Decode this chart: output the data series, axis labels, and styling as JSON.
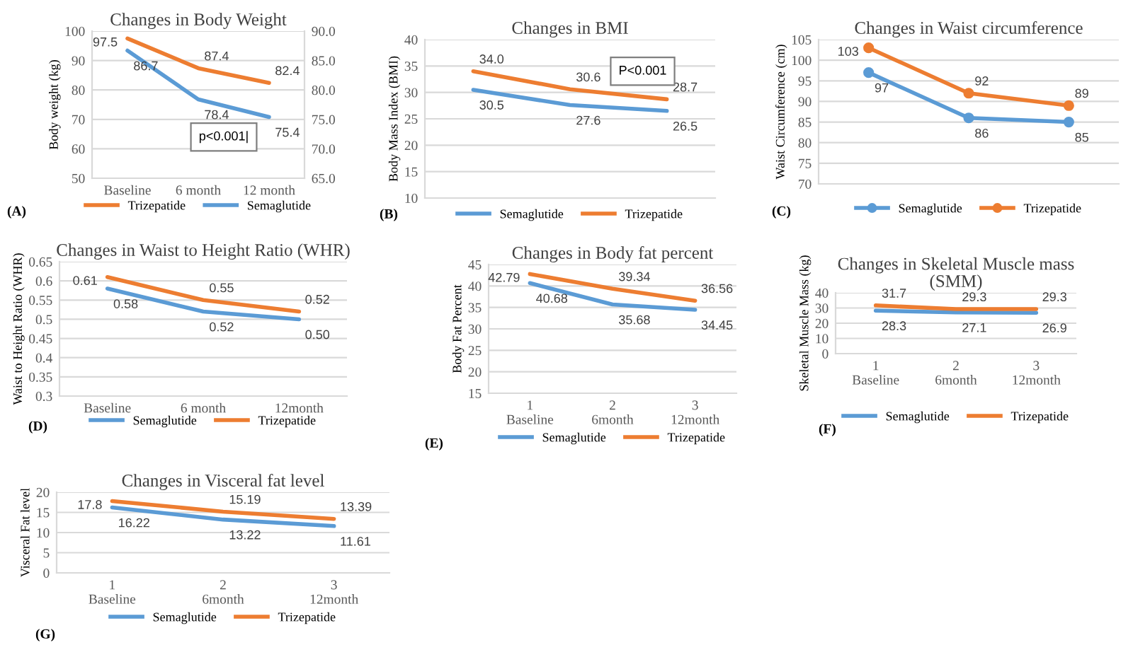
{
  "chart_data": [
    {
      "type": "line",
      "title": "Changes in Body Weight",
      "ylabel": "Body weight (kg)",
      "categories": [
        "Baseline",
        "6 month",
        "12 month"
      ],
      "series": [
        {
          "name": "Trizepatide",
          "color": "#ed7d31",
          "values": [
            97.5,
            87.4,
            82.4
          ],
          "value_labels": [
            "97.5",
            "87.4",
            "82.4"
          ]
        },
        {
          "name": "Semaglutide",
          "color": "#5b9bd5",
          "axis": "y2",
          "values": [
            86.7,
            78.4,
            75.4
          ],
          "value_labels": [
            "86.7",
            "78.4",
            "75.4"
          ]
        }
      ],
      "ylim": [
        50,
        100
      ],
      "yticks": [
        50,
        60,
        70,
        80,
        90,
        100
      ],
      "y2lim": [
        65,
        90
      ],
      "y2ticks": [
        {
          "value": 65,
          "label": "65.0"
        },
        {
          "value": 70,
          "label": "70.0"
        },
        {
          "value": 75,
          "label": "75.0"
        },
        {
          "value": 80,
          "label": "80.0"
        },
        {
          "value": 85,
          "label": "85.0"
        },
        {
          "value": 90,
          "label": "90.0"
        }
      ],
      "grid": "y",
      "legend": "bottom",
      "annotations": [
        "(A)",
        "p<0.001|"
      ]
    },
    {
      "type": "line",
      "title": "Changes in BMI",
      "ylabel": "Body Mass Index (BMI)",
      "categories": [
        null,
        null,
        null
      ],
      "series": [
        {
          "name": "Semaglutide",
          "color": "#5b9bd5",
          "values": [
            30.5,
            27.6,
            26.5
          ],
          "value_labels": [
            "30.5",
            "27.6",
            "26.5"
          ]
        },
        {
          "name": "Trizepatide",
          "color": "#ed7d31",
          "values": [
            34.0,
            30.6,
            28.7
          ],
          "value_labels": [
            "34.0",
            "30.6",
            "28.7"
          ]
        }
      ],
      "ylim": [
        10,
        40
      ],
      "yticks": [
        10,
        15,
        20,
        25,
        30,
        35,
        40
      ],
      "grid": "y",
      "legend": "bottom",
      "annotations": [
        "(B)",
        "P<0.001"
      ]
    },
    {
      "type": "line",
      "title": "Changes in Waist circumference",
      "ylabel": "Waist Circumference (cm)",
      "categories": [
        null,
        null,
        null
      ],
      "series": [
        {
          "name": "Semaglutide",
          "color": "#5b9bd5",
          "values": [
            97,
            86,
            85
          ],
          "value_labels": [
            "97",
            "86",
            "85"
          ]
        },
        {
          "name": "Trizepatide",
          "color": "#ed7d31",
          "values": [
            103,
            92,
            89
          ],
          "value_labels": [
            "103",
            "92",
            "89"
          ]
        }
      ],
      "ylim": [
        70,
        105
      ],
      "yticks": [
        70,
        75,
        80,
        85,
        90,
        95,
        100,
        105
      ],
      "grid": "y",
      "legend": "bottom",
      "marker": "circle",
      "annotations": [
        "(C)"
      ]
    },
    {
      "type": "line",
      "title": "Changes in Waist to Height Ratio (WHR)",
      "ylabel": "Waist to Height Ratio (WHR)",
      "categories": [
        "Baseline",
        "6 month",
        "12month"
      ],
      "series": [
        {
          "name": "Semaglutide",
          "color": "#5b9bd5",
          "values": [
            0.58,
            0.52,
            0.5
          ],
          "value_labels": [
            "0.58",
            "0.52",
            "0.50"
          ]
        },
        {
          "name": "Trizepatide",
          "color": "#ed7d31",
          "values": [
            0.61,
            0.55,
            0.52
          ],
          "value_labels": [
            "0.61",
            "0.55",
            "0.52"
          ]
        }
      ],
      "ylim": [
        0.3,
        0.65
      ],
      "yticks": [
        0.3,
        0.35,
        0.4,
        0.45,
        0.5,
        0.55,
        0.6,
        0.65
      ],
      "grid": "y",
      "legend": "bottom",
      "annotations": [
        "(D)"
      ]
    },
    {
      "type": "line",
      "title": "Changes in Body fat percent",
      "ylabel": "Body Fat Percent",
      "categories": [
        "1\nBaseline",
        "2\n6month",
        "3\n12month"
      ],
      "series": [
        {
          "name": "Semaglutide",
          "color": "#5b9bd5",
          "values": [
            40.68,
            35.68,
            34.45
          ],
          "value_labels": [
            "40.68",
            "35.68",
            "34.45"
          ]
        },
        {
          "name": "Trizepatide",
          "color": "#ed7d31",
          "values": [
            42.79,
            39.34,
            36.56
          ],
          "value_labels": [
            "42.79",
            "39.34",
            "36.56"
          ]
        }
      ],
      "ylim": [
        15,
        45
      ],
      "yticks": [
        15,
        20,
        25,
        30,
        35,
        40,
        45
      ],
      "grid": "y",
      "legend": "bottom",
      "annotations": [
        "(E)"
      ]
    },
    {
      "type": "line",
      "title": "Changes in Skeletal Muscle mass\n(SMM)",
      "ylabel": "Skeletal Muscle Mass (kg)",
      "categories": [
        "1\nBaseline",
        "2\n6month",
        "3\n12month"
      ],
      "series": [
        {
          "name": "Semaglutide",
          "color": "#5b9bd5",
          "values": [
            28.3,
            27.1,
            26.9
          ],
          "value_labels": [
            "28.3",
            "27.1",
            "26.9"
          ]
        },
        {
          "name": "Trizepatide",
          "color": "#ed7d31",
          "values": [
            31.7,
            29.3,
            29.3
          ],
          "value_labels": [
            "31.7",
            "29.3",
            "29.3"
          ]
        }
      ],
      "ylim": [
        0,
        40
      ],
      "yticks": [
        0,
        10,
        20,
        30,
        40
      ],
      "grid": "y",
      "legend": "bottom",
      "annotations": [
        "(F)"
      ]
    },
    {
      "type": "line",
      "title": "Changes in Visceral fat level",
      "ylabel": "Visceral Fat level",
      "categories": [
        "1\nBaseline",
        "2\n6month",
        "3\n12month"
      ],
      "series": [
        {
          "name": "Semaglutide",
          "color": "#5b9bd5",
          "values": [
            16.22,
            13.22,
            11.61
          ],
          "value_labels": [
            "16.22",
            "13.22",
            "11.61"
          ]
        },
        {
          "name": "Trizepatide",
          "color": "#ed7d31",
          "values": [
            17.8,
            15.19,
            13.39
          ],
          "value_labels": [
            "17.8",
            "15.19",
            "13.39"
          ]
        }
      ],
      "ylim": [
        0,
        20
      ],
      "yticks": [
        0,
        5,
        10,
        15,
        20
      ],
      "grid": "y",
      "legend": "bottom",
      "annotations": [
        "(G)"
      ]
    }
  ]
}
